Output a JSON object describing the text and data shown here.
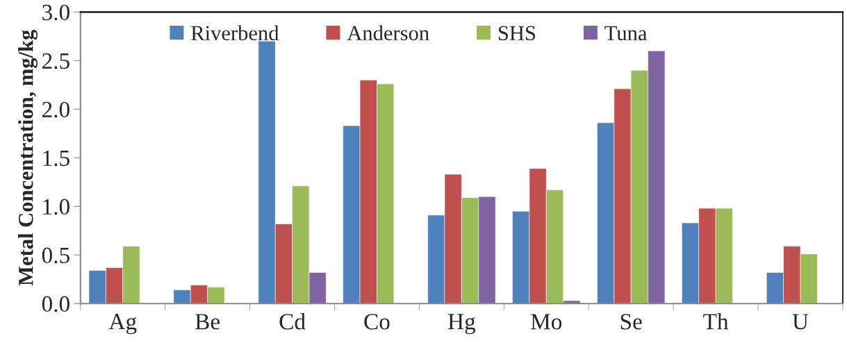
{
  "chart_data": {
    "type": "bar",
    "ylabel": "Metal Concentration, mg/kg",
    "categories": [
      "Ag",
      "Be",
      "Cd",
      "Co",
      "Hg",
      "Mo",
      "Se",
      "Th",
      "U"
    ],
    "series": [
      {
        "name": "Riverbend",
        "color": "#4f81bd",
        "values": [
          0.34,
          0.14,
          2.7,
          1.83,
          0.91,
          0.95,
          1.86,
          0.83,
          0.32
        ]
      },
      {
        "name": "Anderson",
        "color": "#c0504d",
        "values": [
          0.37,
          0.19,
          0.82,
          2.3,
          1.33,
          1.39,
          2.21,
          0.98,
          0.59
        ]
      },
      {
        "name": "SHS",
        "color": "#9bbb59",
        "values": [
          0.59,
          0.17,
          1.21,
          2.26,
          1.09,
          1.17,
          2.4,
          0.98,
          0.51
        ]
      },
      {
        "name": "Tuna",
        "color": "#8064a2",
        "values": [
          null,
          null,
          0.32,
          null,
          1.1,
          0.03,
          2.6,
          null,
          null
        ]
      }
    ],
    "ylim": [
      0,
      3.0
    ],
    "yticks": [
      {
        "value": 0,
        "label": "0.0"
      },
      0.5,
      {
        "value": 1,
        "label": "1.0"
      },
      1.5,
      {
        "value": 2,
        "label": "2.0"
      },
      2.5,
      {
        "value": 3,
        "label": "3.0"
      }
    ],
    "grid": false,
    "legend": "top"
  }
}
